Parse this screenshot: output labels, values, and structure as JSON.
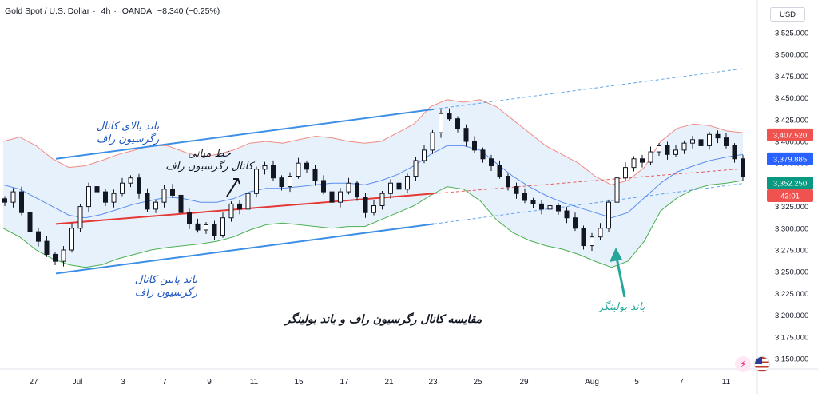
{
  "header": {
    "symbol": "Gold Spot / U.S. Dollar",
    "interval": "4h",
    "source": "OANDA",
    "change": "−8.340 (−0.25%)"
  },
  "currency": "USD",
  "colors": {
    "up": "#26a69a",
    "down": "#ef5350",
    "candle_body": "#131722",
    "band_upper": "#f28b82",
    "band_middle": "#5b8def",
    "band_lower": "#4caf50",
    "band_fill": "#e3effb",
    "regression": "#e53935",
    "channel": "#3d8fe6",
    "annotation_text": "#1e55c0",
    "bollinger_label": "#26a69a"
  },
  "chart_data": {
    "type": "candlestick",
    "timeframe": "4h",
    "y_axis": {
      "ticks": [
        "3,525.000",
        "3,500.000",
        "3,475.000",
        "3,450.000",
        "3,425.000",
        "3,400.000",
        "3,375.000",
        "3,350.000",
        "3,325.000",
        "3,300.000",
        "3,275.000",
        "3,250.000",
        "3,225.000",
        "3,200.000",
        "3,175.000",
        "3,150.000"
      ],
      "range": [
        3140,
        3535
      ]
    },
    "x_axis": {
      "ticks": [
        "27",
        "Jul",
        "3",
        "7",
        "9",
        "11",
        "15",
        "17",
        "21",
        "23",
        "25",
        "29",
        "Aug",
        "5",
        "7",
        "11"
      ]
    },
    "price_labels": [
      {
        "text": "3,407.520",
        "value": 3407.52,
        "color": "#ef5350"
      },
      {
        "text": "3,379.885",
        "value": 3379.885,
        "color": "#2962ff"
      },
      {
        "text": "3,352.250",
        "value": 3352.25,
        "color": "#089981"
      },
      {
        "text": "43:01",
        "value": 3342.0,
        "color": "#ef5350"
      }
    ],
    "close_series": [
      3330,
      3342,
      3318,
      3296,
      3285,
      3270,
      3262,
      3275,
      3300,
      3325,
      3348,
      3342,
      3330,
      3340,
      3352,
      3358,
      3340,
      3322,
      3330,
      3345,
      3338,
      3318,
      3305,
      3298,
      3304,
      3292,
      3312,
      3328,
      3322,
      3340,
      3368,
      3372,
      3358,
      3348,
      3360,
      3375,
      3368,
      3355,
      3342,
      3330,
      3342,
      3352,
      3336,
      3318,
      3326,
      3340,
      3352,
      3345,
      3360,
      3378,
      3390,
      3410,
      3432,
      3426,
      3415,
      3400,
      3390,
      3380,
      3372,
      3360,
      3348,
      3340,
      3332,
      3328,
      3322,
      3326,
      3320,
      3312,
      3300,
      3280,
      3290,
      3300,
      3330,
      3358,
      3370,
      3380,
      3376,
      3388,
      3395,
      3385,
      3390,
      3398,
      3402,
      3395,
      3408,
      3404,
      3395,
      3380,
      3360
    ],
    "bollinger": {
      "upper": [
        3400,
        3405,
        3395,
        3380,
        3370,
        3372,
        3378,
        3385,
        3390,
        3395,
        3395,
        3388,
        3382,
        3385,
        3390,
        3398,
        3400,
        3398,
        3402,
        3406,
        3404,
        3400,
        3398,
        3400,
        3410,
        3420,
        3440,
        3448,
        3445,
        3448,
        3440,
        3425,
        3410,
        3395,
        3385,
        3375,
        3360,
        3350,
        3355,
        3370,
        3400,
        3415,
        3420,
        3418,
        3412,
        3410
      ],
      "middle": [
        3350,
        3345,
        3335,
        3325,
        3315,
        3312,
        3316,
        3322,
        3328,
        3332,
        3336,
        3334,
        3330,
        3330,
        3334,
        3342,
        3346,
        3346,
        3348,
        3350,
        3352,
        3352,
        3350,
        3355,
        3362,
        3372,
        3385,
        3395,
        3395,
        3390,
        3375,
        3360,
        3348,
        3338,
        3330,
        3324,
        3318,
        3312,
        3318,
        3335,
        3352,
        3365,
        3372,
        3378,
        3382,
        3385
      ],
      "lower": [
        3300,
        3290,
        3275,
        3265,
        3258,
        3255,
        3258,
        3265,
        3270,
        3275,
        3278,
        3280,
        3282,
        3285,
        3290,
        3298,
        3304,
        3306,
        3304,
        3302,
        3300,
        3302,
        3302,
        3310,
        3318,
        3326,
        3338,
        3348,
        3345,
        3332,
        3310,
        3295,
        3286,
        3280,
        3276,
        3270,
        3262,
        3255,
        3262,
        3285,
        3320,
        3335,
        3345,
        3350,
        3352,
        3355
      ]
    },
    "regression_channel": {
      "middle": {
        "start": 3305,
        "end": 3340
      },
      "upper": {
        "start": 3380,
        "end": 3437
      },
      "lower": {
        "start": 3248,
        "end": 3305
      }
    },
    "annotations": [
      {
        "text": "باند بالای کانال",
        "line2": "رگرسیون راف"
      },
      {
        "text": "خط میانی",
        "line2": "کانال رگرسیون راف"
      },
      {
        "text": "باند پایین کانال",
        "line2": "رگرسیون راف"
      },
      {
        "text": "باند بولینگر"
      },
      {
        "text": "مقایسه کانال رگرسیون راف و باند بولینگر"
      }
    ]
  }
}
